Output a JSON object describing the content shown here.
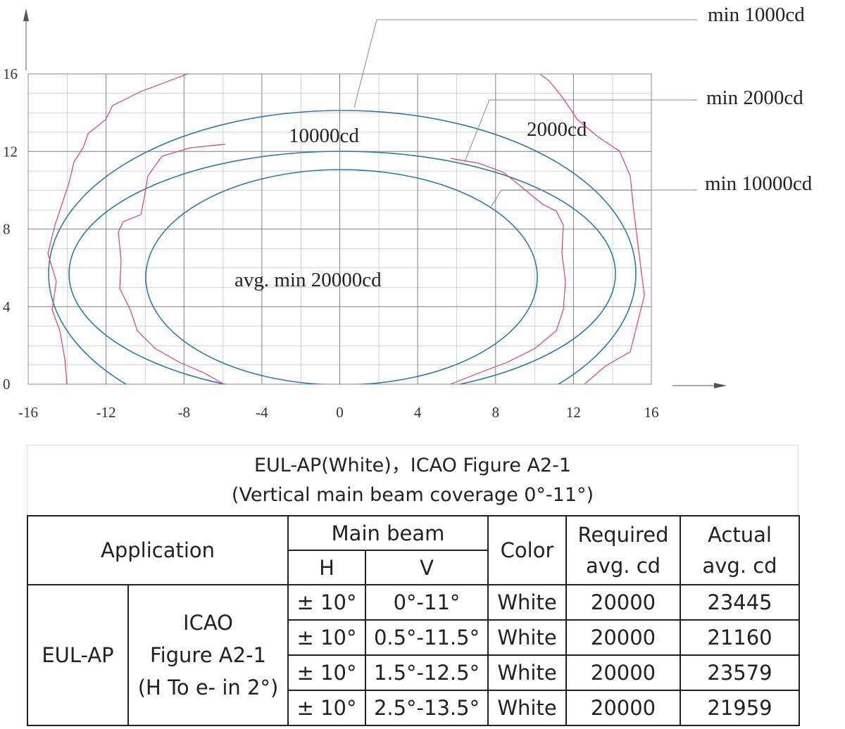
{
  "diagram": {
    "xlim": [
      -16,
      16
    ],
    "ylim": [
      0,
      16
    ],
    "xticks": [
      -16,
      -12,
      -8,
      -4,
      0,
      4,
      8,
      12,
      16
    ],
    "yticks": [
      0,
      4,
      8,
      12,
      16
    ],
    "labels": [
      "min 1000cd",
      "min 2000cd",
      "min 10000cd",
      "10000cd",
      "2000cd",
      "avg. min 20000cd"
    ]
  },
  "table": {
    "title": [
      "EUL-AP(White)，ICAO Figure A2-1",
      "(Vertical main beam coverage 0°-11°)"
    ],
    "header": {
      "application": "Application",
      "main_beam": "Main beam",
      "h": "H",
      "v": "V",
      "color": "Color",
      "required": [
        "Required",
        "avg. cd"
      ],
      "actual": [
        "Actual",
        "avg. cd"
      ]
    },
    "application": "EUL-AP",
    "figure": [
      "ICAO",
      "Figure A2-1",
      "(H To e- in 2°)"
    ],
    "rows": [
      [
        "± 10°",
        "0°-11°",
        "White",
        20000,
        23445
      ],
      [
        "± 10°",
        "0.5°-11.5°",
        "White",
        20000,
        21160
      ],
      [
        "± 10°",
        "1.5°-12.5°",
        "White",
        20000,
        23579
      ],
      [
        "± 10°",
        "2.5°-13.5°",
        "White",
        20000,
        21959
      ]
    ]
  }
}
